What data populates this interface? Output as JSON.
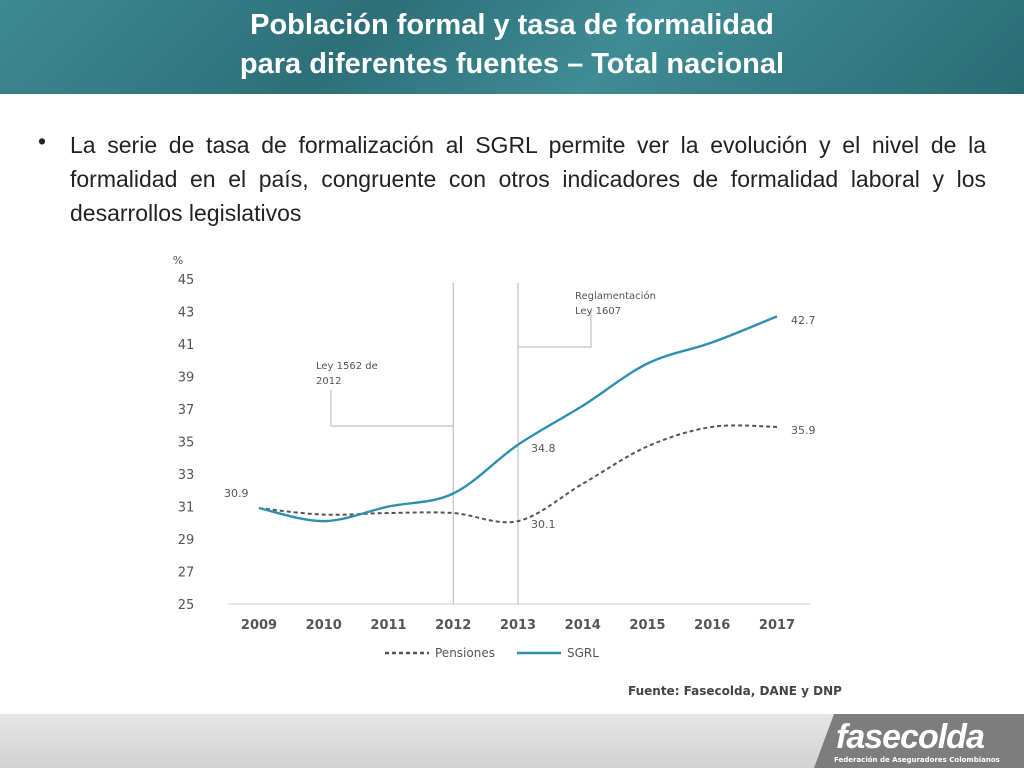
{
  "header": {
    "title_line1": "Población formal y tasa de formalidad",
    "title_line2": "para diferentes fuentes – Total nacional"
  },
  "body": {
    "bullet_symbol": "•",
    "text": "La serie de tasa de formalización al SGRL permite ver la evolución y el nivel de la formalidad en el país, congruente con otros indicadores de formalidad laboral y los desarrollos legislativos"
  },
  "chart_data": {
    "type": "line",
    "ylabel": "%",
    "ylim": [
      25,
      45
    ],
    "yticks": [
      25,
      27,
      29,
      31,
      33,
      35,
      37,
      39,
      41,
      43,
      45
    ],
    "categories": [
      "2009",
      "2010",
      "2011",
      "2012",
      "2013",
      "2014",
      "2015",
      "2016",
      "2017"
    ],
    "series": [
      {
        "name": "Pensiones",
        "style": "dashed",
        "color": "#555555",
        "values": [
          30.9,
          30.5,
          30.6,
          30.6,
          30.1,
          32.4,
          34.7,
          35.9,
          35.9
        ]
      },
      {
        "name": "SGRL",
        "style": "solid",
        "color": "#2f8fb0",
        "values": [
          30.9,
          30.1,
          31.0,
          31.8,
          34.8,
          37.2,
          39.8,
          41.1,
          42.7
        ]
      }
    ],
    "value_labels": [
      {
        "text": "30.9"
      },
      {
        "text": "34.8"
      },
      {
        "text": "30.1"
      },
      {
        "text": "42.7"
      },
      {
        "text": "35.9"
      }
    ],
    "annotations": [
      {
        "year": "2012",
        "lines": [
          "Ley 1562 de",
          "2012"
        ]
      },
      {
        "year": "2013",
        "lines": [
          "Reglamentación",
          "Ley 1607"
        ]
      }
    ],
    "legend_placement": "bottom",
    "grid": false,
    "source": "Fuente: Fasecolda, DANE y DNP"
  },
  "footer": {
    "logo_text": "fasecolda",
    "logo_subtitle": "Federación de Aseguradores Colombianos"
  },
  "colors": {
    "header": "#2d6f78",
    "sgrl": "#2f8fb0",
    "pensiones": "#555555"
  }
}
